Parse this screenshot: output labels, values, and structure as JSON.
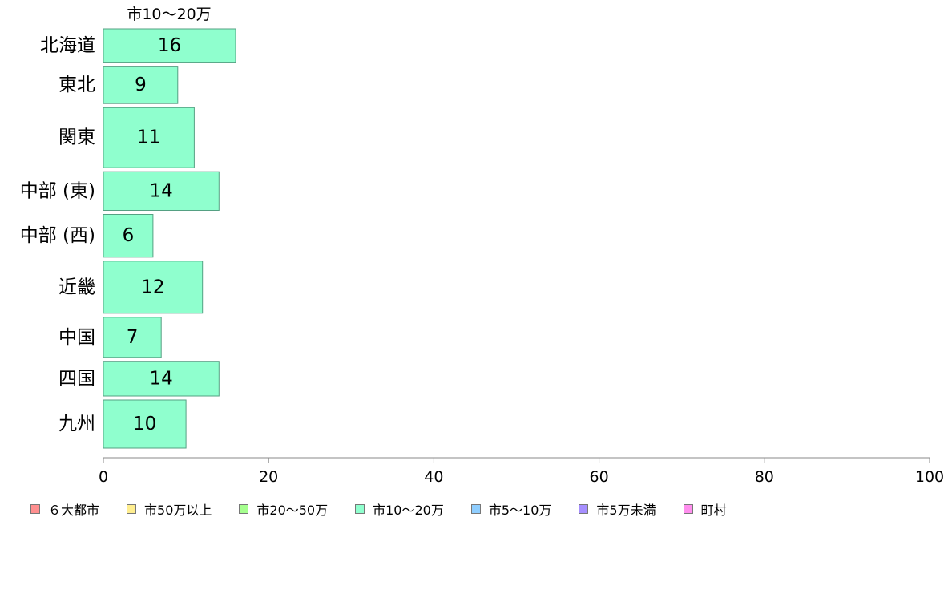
{
  "chart_data": {
    "type": "bar",
    "orientation": "horizontal",
    "title": "",
    "series_title": "市10〜20万",
    "categories": [
      "北海道",
      "東北",
      "関東",
      "中部 (東)",
      "中部 (西)",
      "近畿",
      "中国",
      "四国",
      "九州"
    ],
    "series": [
      {
        "name": "市10〜20万",
        "values": [
          16,
          9,
          11,
          14,
          6,
          12,
          7,
          14,
          10
        ],
        "labels": [
          "16",
          "9",
          "11",
          "14",
          "6",
          "12",
          "7",
          "14",
          "10"
        ],
        "color": "#8fffce"
      }
    ],
    "category_weights": [
      0.25,
      0.28,
      0.45,
      0.29,
      0.32,
      0.39,
      0.3,
      0.26,
      0.36
    ],
    "xlim": [
      0,
      100
    ],
    "x_ticks": [
      0,
      20,
      40,
      60,
      80,
      100
    ],
    "x_tick_labels": [
      "0",
      "20",
      "40",
      "60",
      "80",
      "100"
    ],
    "xlabel": "",
    "ylabel": "",
    "grid": false,
    "legend": {
      "position": "bottom",
      "items": [
        {
          "label": "６大都市",
          "color": "#ff8f8f"
        },
        {
          "label": "市50万以上",
          "color": "#ffee8f"
        },
        {
          "label": "市20〜50万",
          "color": "#a6ff8f"
        },
        {
          "label": "市10〜20万",
          "color": "#8fffce"
        },
        {
          "label": "市5〜10万",
          "color": "#8fceff"
        },
        {
          "label": "市5万未満",
          "color": "#a68fff"
        },
        {
          "label": "町村",
          "color": "#ff8fee"
        }
      ]
    }
  }
}
